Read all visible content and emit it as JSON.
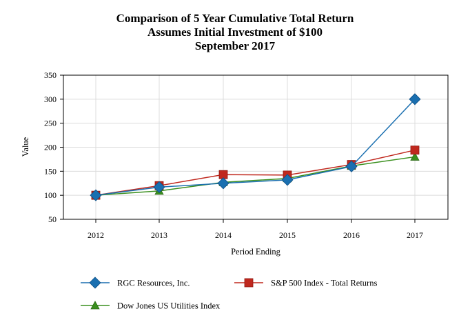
{
  "chart_data": {
    "type": "line",
    "title": [
      "Comparison of 5 Year Cumulative Total Return",
      "Assumes Initial Investment of $100",
      "September 2017"
    ],
    "xlabel": "Period Ending",
    "ylabel": "Value",
    "categories": [
      "2012",
      "2013",
      "2014",
      "2015",
      "2016",
      "2017"
    ],
    "ylim": [
      50,
      350
    ],
    "yticks": [
      50,
      100,
      150,
      200,
      250,
      300,
      350
    ],
    "grid": true,
    "legend_position": "bottom",
    "series": [
      {
        "name": "RGC Resources, Inc.",
        "color": "#1a6fb0",
        "marker": "diamond",
        "values": [
          100,
          117,
          125,
          132,
          160,
          300
        ]
      },
      {
        "name": "S&P 500 Index - Total Returns",
        "color": "#c0281e",
        "marker": "square",
        "values": [
          100,
          120,
          143,
          142,
          164,
          194
        ]
      },
      {
        "name": "Dow Jones US Utilities Index",
        "color": "#3a8f1e",
        "marker": "triangle",
        "values": [
          100,
          109,
          127,
          135,
          161,
          180
        ]
      }
    ]
  }
}
